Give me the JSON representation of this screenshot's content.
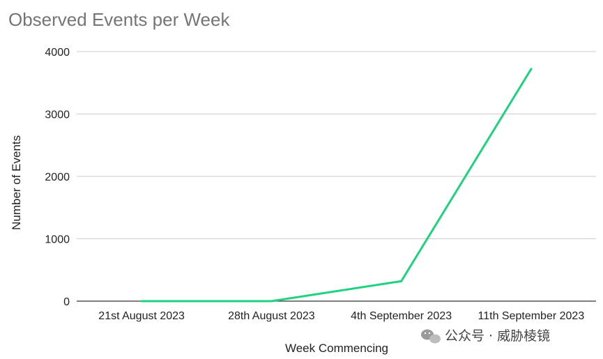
{
  "chart_data": {
    "type": "line",
    "title": "Observed Events per Week",
    "xlabel": "Week Commencing",
    "ylabel": "Number of Events",
    "categories": [
      "21st August 2023",
      "28th August 2023",
      "4th September 2023",
      "11th September 2023"
    ],
    "series": [
      {
        "values": [
          0,
          0,
          320,
          3720
        ],
        "color": "#1ed37f"
      }
    ],
    "ylim": [
      0,
      4000
    ],
    "yticks": [
      0,
      1000,
      2000,
      3000,
      4000
    ],
    "grid": true,
    "legend": "none"
  },
  "watermark": {
    "text": "公众号 · 威胁棱镜",
    "icon": "wechat-icon"
  }
}
